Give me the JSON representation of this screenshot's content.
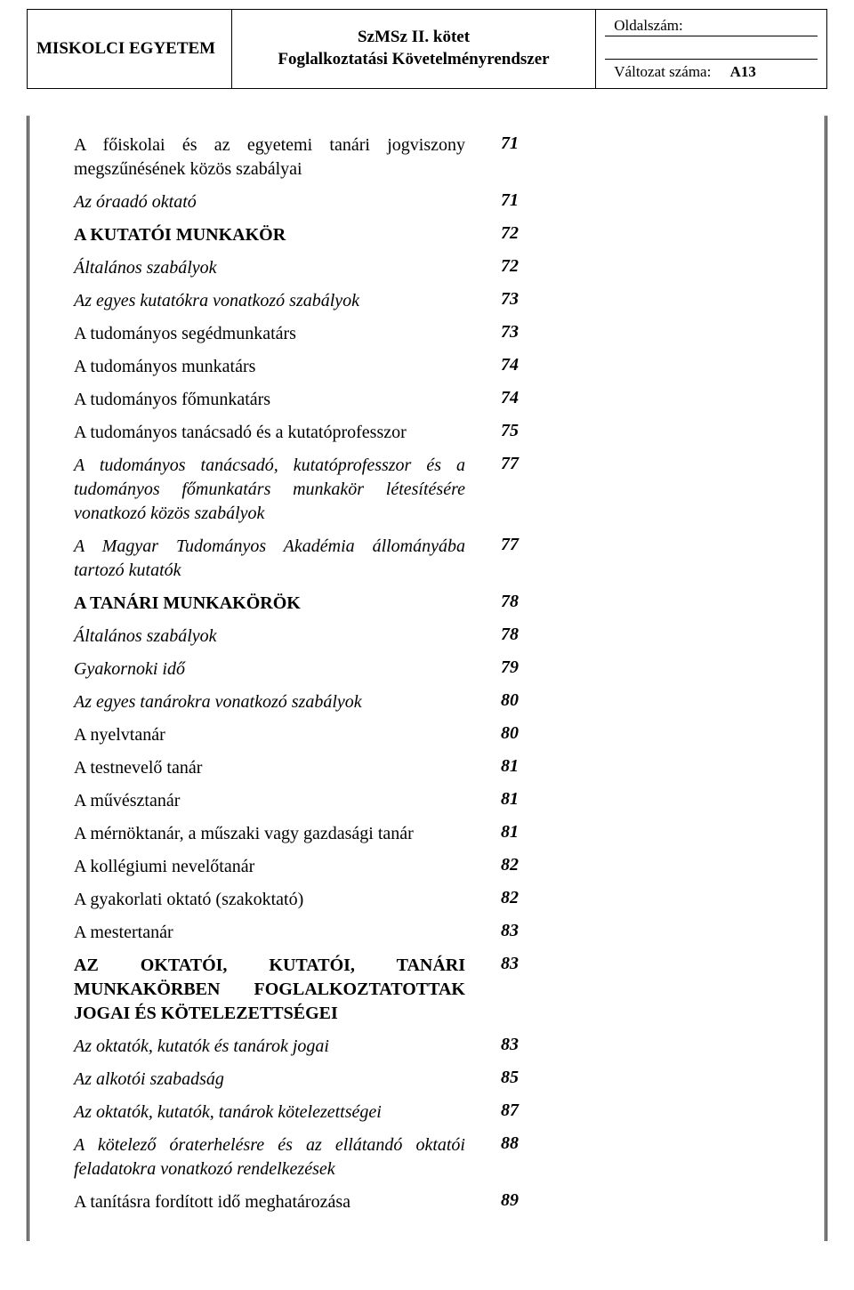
{
  "header": {
    "left": "MISKOLCI  EGYETEM",
    "center_line1": "SzMSz II. kötet",
    "center_line2": "Foglalkoztatási Követelményrendszer",
    "page_label": "Oldalszám:",
    "page_value": "",
    "version_label": "Változat száma:",
    "version_value": "A13"
  },
  "toc": [
    {
      "label": "A főiskolai és az egyetemi tanári jogviszony megszűnésének közös szabályai",
      "page": "71",
      "style": "plain",
      "justify": true
    },
    {
      "label": "Az óraadó oktató",
      "page": "71",
      "style": "italic"
    },
    {
      "label": "A KUTATÓI MUNKAKÖR",
      "page": "72",
      "style": "bold-smallcaps"
    },
    {
      "label": "Általános szabályok",
      "page": "72",
      "style": "italic"
    },
    {
      "label": "Az egyes kutatókra vonatkozó szabályok",
      "page": "73",
      "style": "italic"
    },
    {
      "label": "A tudományos segédmunkatárs",
      "page": "73",
      "style": "plain"
    },
    {
      "label": "A tudományos munkatárs",
      "page": "74",
      "style": "plain"
    },
    {
      "label": "A tudományos főmunkatárs",
      "page": "74",
      "style": "plain"
    },
    {
      "label": "A tudományos tanácsadó és a kutatóprofesszor",
      "page": "75",
      "style": "plain"
    },
    {
      "label": "A tudományos tanácsadó, kutatóprofesszor és a tudományos főmunkatárs munkakör létesítésére vonatkozó közös szabályok",
      "page": "77",
      "style": "italic",
      "justify": true
    },
    {
      "label": "A Magyar Tudományos Akadémia állományába tartozó kutatók",
      "page": "77",
      "style": "italic",
      "justify": true
    },
    {
      "label": "A TANÁRI MUNKAKÖRÖK",
      "page": "78",
      "style": "bold-smallcaps"
    },
    {
      "label": "Általános szabályok",
      "page": "78",
      "style": "italic"
    },
    {
      "label": "Gyakornoki idő",
      "page": "79",
      "style": "italic"
    },
    {
      "label": "Az egyes tanárokra vonatkozó szabályok",
      "page": "80",
      "style": "italic"
    },
    {
      "label": "A nyelvtanár",
      "page": "80",
      "style": "plain"
    },
    {
      "label": "A testnevelő tanár",
      "page": "81",
      "style": "plain"
    },
    {
      "label": "A művésztanár",
      "page": "81",
      "style": "plain"
    },
    {
      "label": "A mérnöktanár, a műszaki vagy gazdasági tanár",
      "page": "81",
      "style": "plain"
    },
    {
      "label": "A kollégiumi nevelőtanár",
      "page": "82",
      "style": "plain"
    },
    {
      "label": "A gyakorlati oktató (szakoktató)",
      "page": "82",
      "style": "plain"
    },
    {
      "label": "A mestertanár",
      "page": "83",
      "style": "plain"
    },
    {
      "label": "AZ OKTATÓI, KUTATÓI, TANÁRI MUNKAKÖRBEN FOGLALKOZTATOTTAK JOGAI ÉS KÖTELEZETTSÉGEI",
      "page": "83",
      "style": "bold-smallcaps",
      "justify": true
    },
    {
      "label": "Az oktatók, kutatók és tanárok jogai",
      "page": "83",
      "style": "italic"
    },
    {
      "label": "Az alkotói szabadság",
      "page": "85",
      "style": "italic"
    },
    {
      "label": "Az oktatók, kutatók, tanárok kötelezettségei",
      "page": "87",
      "style": "italic"
    },
    {
      "label": "A kötelező óraterhelésre és az ellátandó oktatói feladatokra vonatkozó rendelkezések",
      "page": "88",
      "style": "italic",
      "justify": true
    },
    {
      "label": "A tanításra fordított idő meghatározása",
      "page": "89",
      "style": "plain"
    }
  ]
}
